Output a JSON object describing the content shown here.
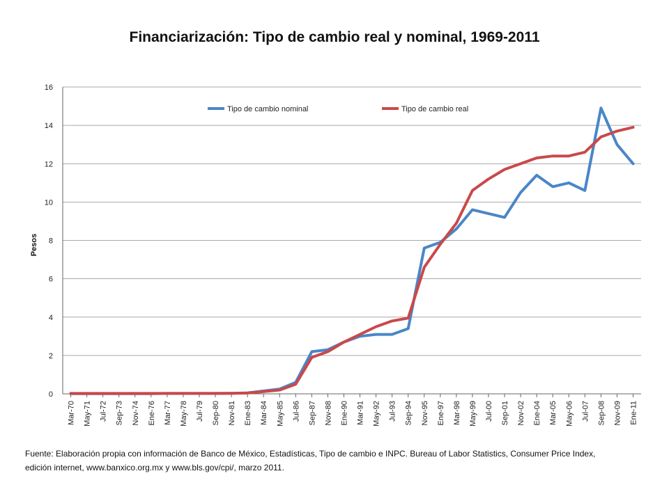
{
  "chart_data": {
    "type": "line",
    "title": "Financiarización: Tipo de cambio real y nominal, 1969-2011",
    "xlabel": "",
    "ylabel": "Pesos",
    "ylim": [
      0,
      16
    ],
    "yticks": [
      0,
      2,
      4,
      6,
      8,
      10,
      12,
      14,
      16
    ],
    "grid": true,
    "legend_placement": "top",
    "categories": [
      "Mar-70",
      "May-71",
      "Jul-72",
      "Sep-73",
      "Nov-74",
      "Ene-76",
      "Mar-77",
      "May-78",
      "Jul-79",
      "Sep-80",
      "Nov-81",
      "Ene-83",
      "Mar-84",
      "May-85",
      "Jul-86",
      "Sep-87",
      "Nov-88",
      "Ene-90",
      "Mar-91",
      "May-92",
      "Jul-93",
      "Sep-94",
      "Nov-95",
      "Ene-97",
      "Mar-98",
      "May-99",
      "Jul-00",
      "Sep-01",
      "Nov-02",
      "Ene-04",
      "Mar-05",
      "May-06",
      "Jul-07",
      "Sep-08",
      "Nov-09",
      "Ene-11"
    ],
    "series": [
      {
        "name": "Tipo de cambio nominal",
        "color": "#4a86c8",
        "values": [
          0.01,
          0.01,
          0.01,
          0.01,
          0.01,
          0.01,
          0.02,
          0.02,
          0.02,
          0.02,
          0.03,
          0.05,
          0.15,
          0.25,
          0.6,
          2.2,
          2.3,
          2.7,
          3.0,
          3.1,
          3.1,
          3.4,
          7.6,
          7.9,
          8.6,
          9.6,
          9.4,
          9.2,
          10.5,
          11.4,
          10.8,
          11.0,
          10.6,
          14.9,
          13.0,
          12.0
        ]
      },
      {
        "name": "Tipo de cambio real",
        "color": "#c9494a",
        "values": [
          0.02,
          0.02,
          0.02,
          0.02,
          0.02,
          0.02,
          0.02,
          0.02,
          0.02,
          0.02,
          0.03,
          0.04,
          0.12,
          0.2,
          0.5,
          1.9,
          2.2,
          2.7,
          3.1,
          3.5,
          3.8,
          3.95,
          6.6,
          7.8,
          8.9,
          10.6,
          11.2,
          11.7,
          12.0,
          12.3,
          12.4,
          12.4,
          12.6,
          13.4,
          13.7,
          13.9
        ]
      }
    ]
  },
  "source_text": {
    "line1": "Fuente: Elaboración propia con información de Banco de México, Estadísticas, Tipo de cambio e INPC.  Bureau of Labor Statistics, Consumer Price Index,",
    "line2": "edición internet, www.banxico.org.mx y www.bls.gov/cpi/, marzo 2011."
  }
}
